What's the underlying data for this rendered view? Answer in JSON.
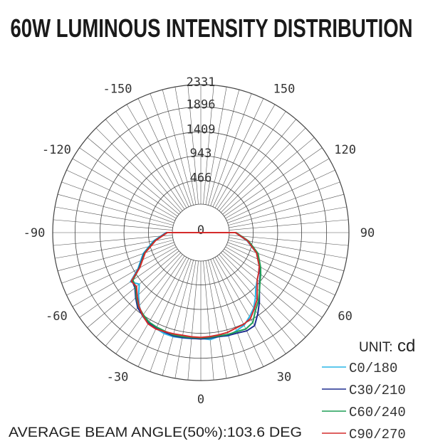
{
  "title": "60W LUMINOUS INTENSITY DISTRIBUTION",
  "footer": "AVERAGE BEAM ANGLE(50%):103.6 DEG",
  "unit_label": "UNIT:",
  "unit_value": "cd",
  "chart_data": {
    "type": "polar",
    "radial_ticks": [
      0,
      466,
      943,
      1409,
      1896,
      2331
    ],
    "radial_max": 2331,
    "angle_ticks": [
      {
        "label": "0",
        "deg": 0
      },
      {
        "label": "30",
        "deg": 30
      },
      {
        "label": "60",
        "deg": 60
      },
      {
        "label": "90",
        "deg": 90
      },
      {
        "label": "120",
        "deg": 120
      },
      {
        "label": "150",
        "deg": 150
      },
      {
        "label": "-30",
        "deg": -30
      },
      {
        "label": "-60",
        "deg": -60
      },
      {
        "label": "-90",
        "deg": -90
      },
      {
        "label": "-120",
        "deg": -120
      },
      {
        "label": "-150",
        "deg": -150
      }
    ],
    "grid": true,
    "legend_position": "bottom-right",
    "series": [
      {
        "name": "C0/180",
        "color": "#29b6e6",
        "angles": [
          -90,
          -80,
          -70,
          -60,
          -55,
          -50,
          -45,
          -40,
          -35,
          -30,
          -25,
          -20,
          -15,
          -10,
          -5,
          0,
          5,
          10,
          15,
          20,
          25,
          30,
          35,
          40,
          45,
          50,
          55,
          60,
          70,
          80,
          90
        ],
        "values": [
          120,
          380,
          640,
          860,
          1120,
          1010,
          1160,
          1310,
          1430,
          1490,
          1510,
          1540,
          1545,
          1530,
          1520,
          1510,
          1540,
          1500,
          1530,
          1480,
          1440,
          1340,
          1240,
          1100,
          960,
          880,
          820,
          760,
          600,
          360,
          120
        ]
      },
      {
        "name": "C30/210",
        "color": "#1f2f8f",
        "angles": [
          -90,
          -80,
          -70,
          -60,
          -55,
          -50,
          -45,
          -40,
          -35,
          -30,
          -25,
          -20,
          -15,
          -10,
          -5,
          0,
          5,
          10,
          15,
          20,
          25,
          30,
          35,
          40,
          45,
          50,
          55,
          60,
          70,
          80,
          90
        ],
        "values": [
          110,
          360,
          620,
          840,
          1080,
          1120,
          1240,
          1360,
          1420,
          1480,
          1500,
          1510,
          1530,
          1525,
          1515,
          1520,
          1510,
          1505,
          1520,
          1530,
          1560,
          1540,
          1380,
          1220,
          1060,
          940,
          860,
          780,
          620,
          380,
          130
        ]
      },
      {
        "name": "C60/240",
        "color": "#1e9e57",
        "angles": [
          -90,
          -80,
          -70,
          -60,
          -55,
          -50,
          -45,
          -40,
          -35,
          -30,
          -25,
          -20,
          -15,
          -10,
          -5,
          0,
          5,
          10,
          15,
          20,
          25,
          30,
          35,
          40,
          45,
          50,
          55,
          60,
          70,
          80,
          90
        ],
        "values": [
          100,
          350,
          610,
          830,
          1060,
          1100,
          1220,
          1330,
          1400,
          1460,
          1480,
          1490,
          1510,
          1505,
          1500,
          1500,
          1495,
          1490,
          1500,
          1500,
          1520,
          1470,
          1300,
          1190,
          1060,
          950,
          870,
          790,
          630,
          390,
          130
        ]
      },
      {
        "name": "C90/270",
        "color": "#d42b2b",
        "angles": [
          -90,
          -80,
          -70,
          -60,
          -55,
          -50,
          -45,
          -40,
          -35,
          -30,
          -25,
          -20,
          -15,
          -10,
          -5,
          0,
          5,
          10,
          15,
          20,
          25,
          30,
          35,
          40,
          45,
          50,
          55,
          60,
          70,
          80,
          90
        ],
        "values": [
          100,
          340,
          600,
          820,
          1100,
          1080,
          1200,
          1320,
          1420,
          1500,
          1520,
          1500,
          1490,
          1480,
          1485,
          1490,
          1480,
          1470,
          1460,
          1430,
          1420,
          1380,
          1260,
          1150,
          1000,
          880,
          820,
          760,
          600,
          370,
          120
        ]
      }
    ]
  }
}
